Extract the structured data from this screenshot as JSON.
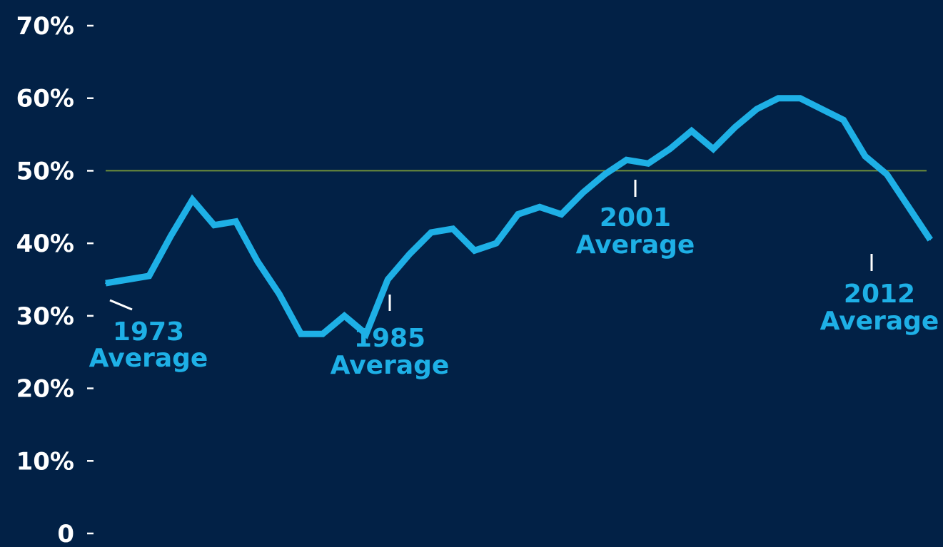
{
  "chart_data": {
    "type": "line",
    "title": "",
    "xlabel": "",
    "ylabel": "",
    "ylim": [
      0,
      70
    ],
    "grid": false,
    "reference_line": {
      "value": 50,
      "color": "#6f8f3a"
    },
    "y_ticks": [
      {
        "value": 0,
        "label": "0"
      },
      {
        "value": 10,
        "label": "10%"
      },
      {
        "value": 20,
        "label": "20%"
      },
      {
        "value": 30,
        "label": "30%"
      },
      {
        "value": 40,
        "label": "40%"
      },
      {
        "value": 50,
        "label": "50%"
      },
      {
        "value": 60,
        "label": "60%"
      },
      {
        "value": 70,
        "label": "70%"
      }
    ],
    "series": [
      {
        "color": "#1eb0e6",
        "x": [
          1973,
          1974,
          1975,
          1976,
          1977,
          1978,
          1979,
          1980,
          1981,
          1982,
          1983,
          1984,
          1985,
          1986,
          1987,
          1988,
          1989,
          1990,
          1991,
          1992,
          1993,
          1994,
          1995,
          1996,
          1997,
          1998,
          1999,
          2000,
          2001,
          2002,
          2003,
          2004,
          2005,
          2006,
          2007,
          2008,
          2009,
          2010,
          2011,
          2012
        ],
        "values": [
          34.5,
          35,
          35.5,
          41,
          46,
          42.5,
          43,
          37.5,
          33,
          27.5,
          27.5,
          30,
          27.5,
          35,
          38.5,
          41.5,
          42,
          39,
          40,
          44,
          45,
          44,
          47,
          49.5,
          51.5,
          51,
          53,
          55.5,
          53,
          56,
          58.5,
          60,
          60,
          58.5,
          57,
          52,
          49.5,
          45,
          40.5,
          null
        ]
      }
    ],
    "annotations": [
      {
        "year": "1973",
        "label": "Average"
      },
      {
        "year": "1985",
        "label": "Average"
      },
      {
        "year": "2001",
        "label": "Average"
      },
      {
        "year": "2012",
        "label": "Average"
      }
    ],
    "colors": {
      "background": "#022146",
      "line": "#1eb0e6",
      "text": "#ffffff",
      "annotation": "#1eb0e6"
    }
  }
}
